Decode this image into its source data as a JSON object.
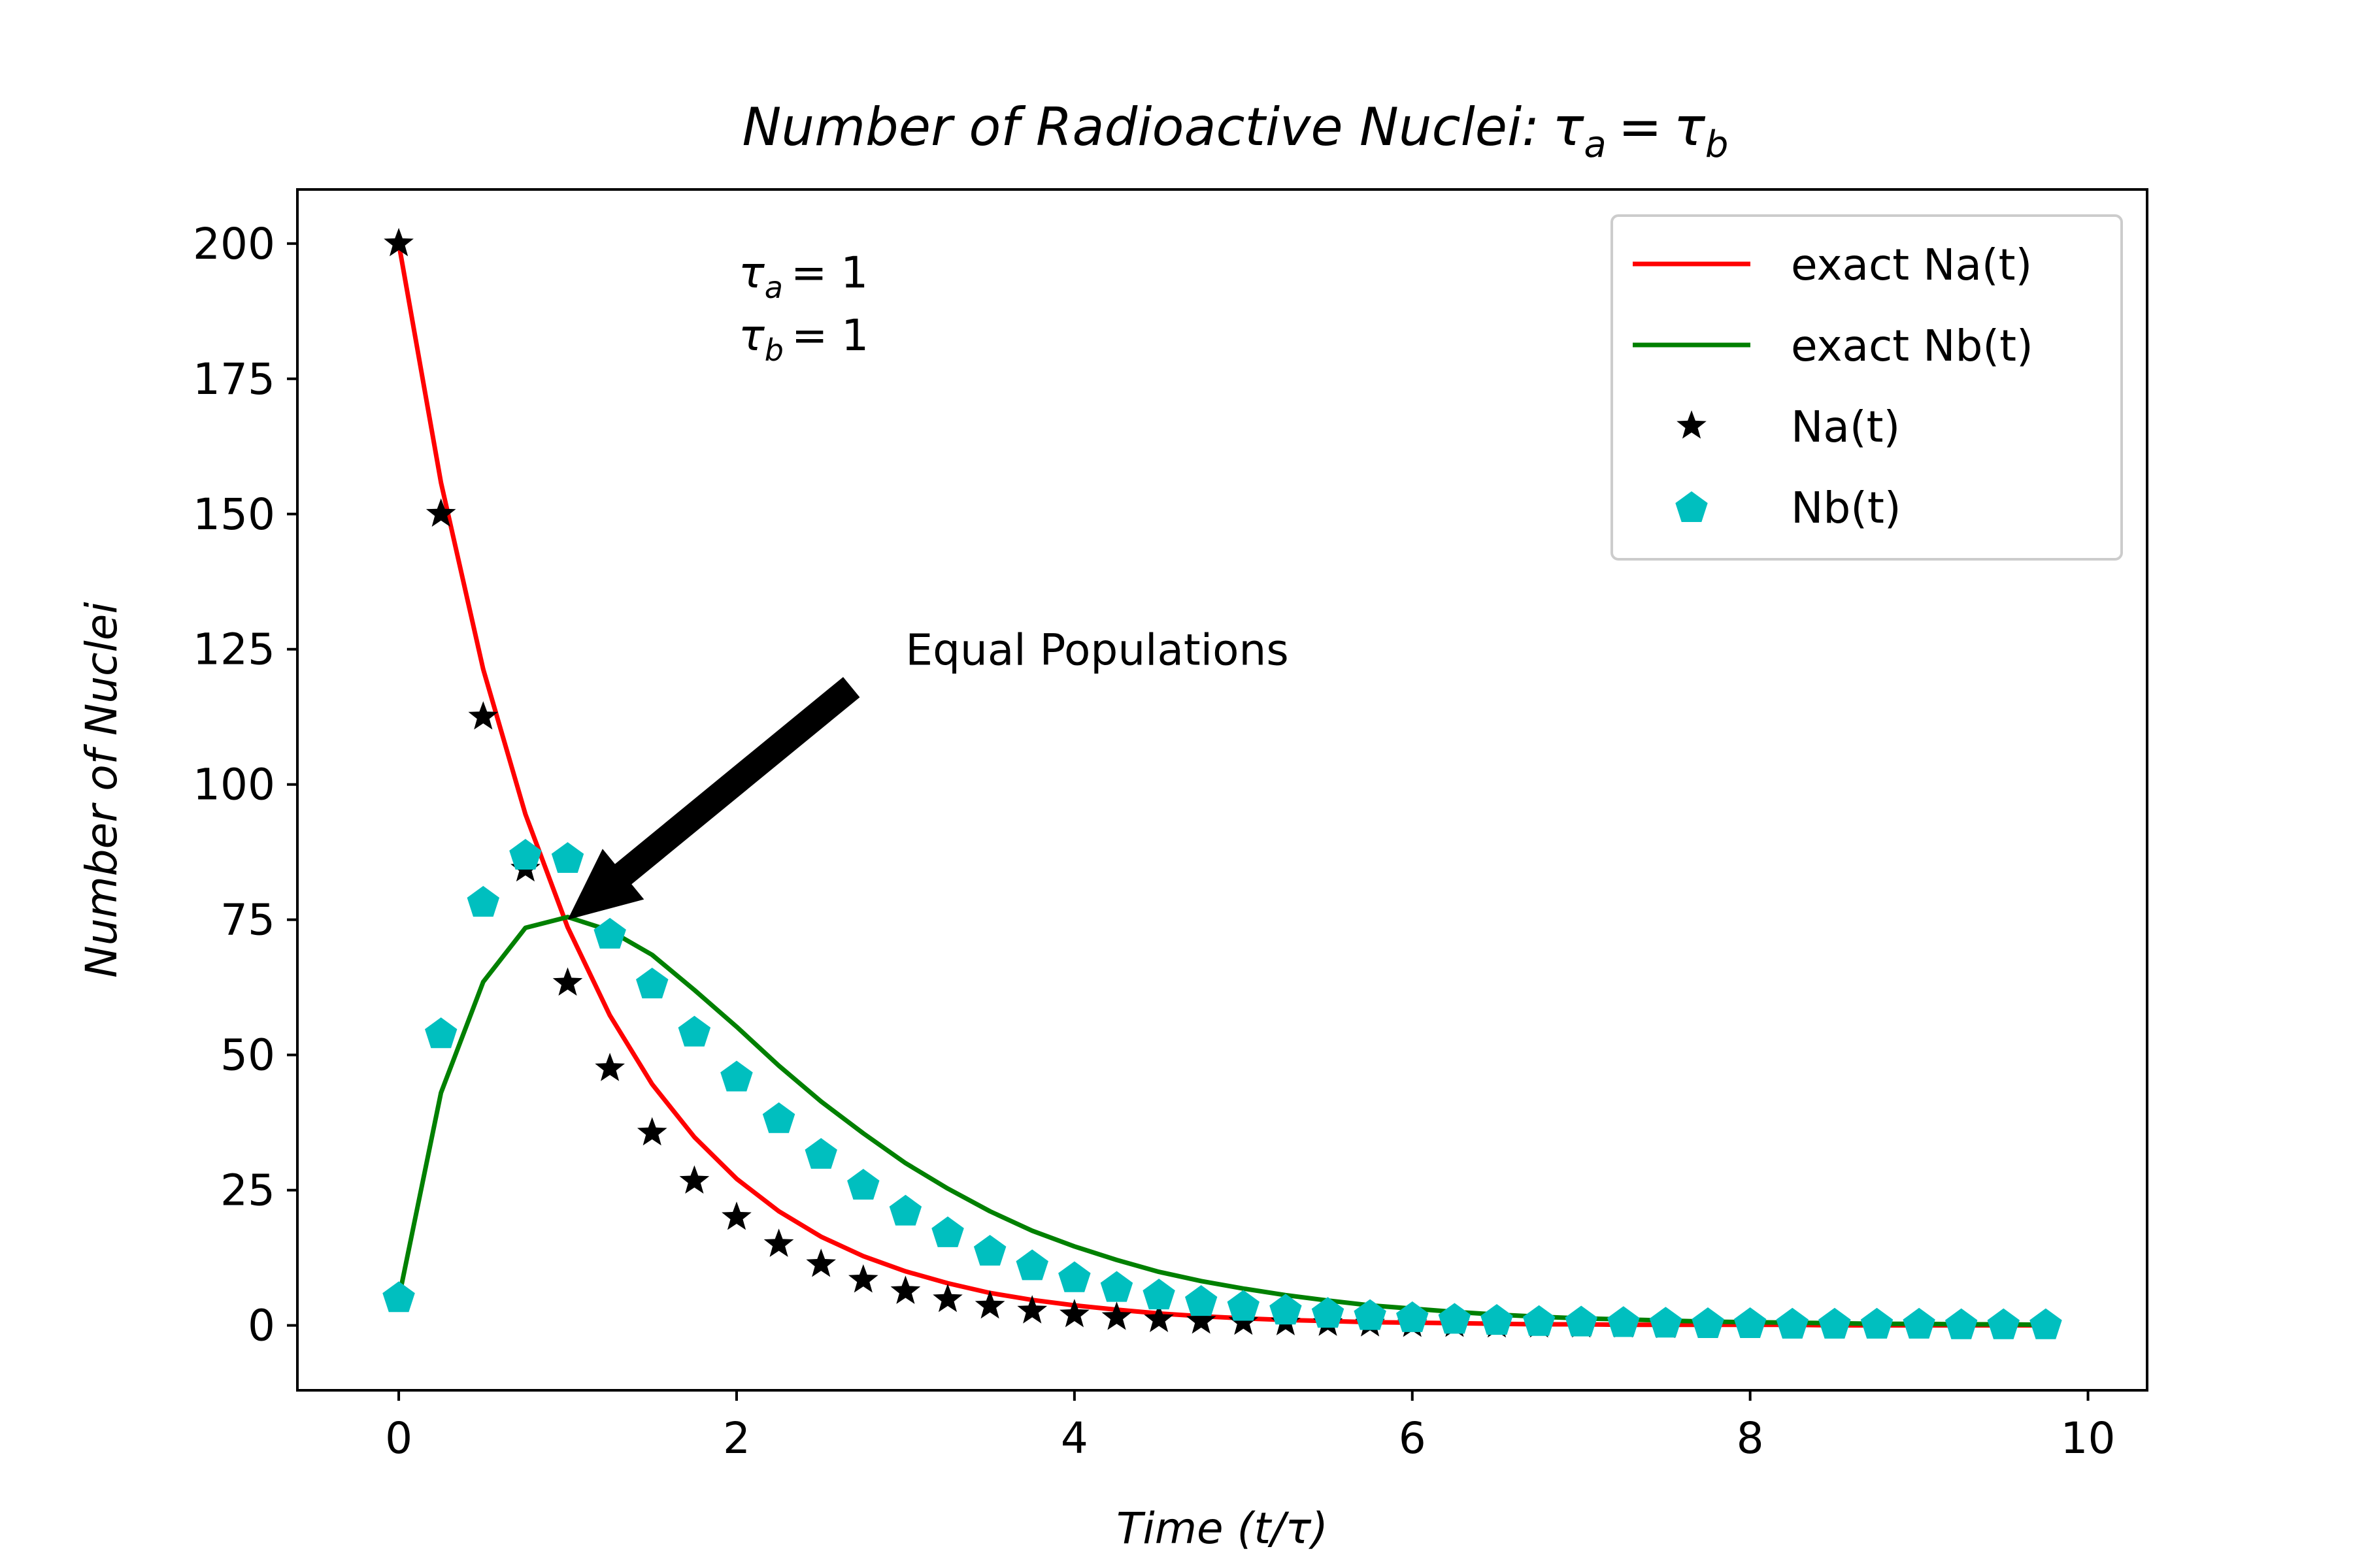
{
  "chart_data": {
    "type": "line",
    "title": "Number of Radioactive Nuclei:",
    "title_math": {
      "tau_a": "τ",
      "sub_a": "a",
      "eq": "=",
      "tau_b": "τ",
      "sub_b": "b"
    },
    "xlabel": "Time (t/τ)",
    "ylabel": "Number of Nuclei",
    "xlim": [
      -0.6,
      10.35
    ],
    "ylim": [
      -12,
      210
    ],
    "xticks": [
      0,
      2,
      4,
      6,
      8,
      10
    ],
    "yticks": [
      0,
      25,
      50,
      75,
      100,
      125,
      150,
      175,
      200
    ],
    "grid": false,
    "legend_position": "top-right",
    "annotations": {
      "params": [
        {
          "sym": "τ",
          "sub": "a",
          "rhs": "= 1"
        },
        {
          "sym": "τ",
          "sub": "b",
          "rhs": "= 1"
        }
      ],
      "arrow_text": "Equal Populations",
      "arrow_target": {
        "x": 1.0,
        "y": 75
      },
      "arrow_text_anchor": {
        "x": 3.0,
        "y": 125
      }
    },
    "x": [
      0,
      0.25,
      0.5,
      0.75,
      1.0,
      1.25,
      1.5,
      1.75,
      2.0,
      2.25,
      2.5,
      2.75,
      3.0,
      3.25,
      3.5,
      3.75,
      4.0,
      4.25,
      4.5,
      4.75,
      5.0,
      5.25,
      5.5,
      5.75,
      6.0,
      6.25,
      6.5,
      6.75,
      7.0,
      7.25,
      7.5,
      7.75,
      8.0,
      8.25,
      8.5,
      8.75,
      9.0,
      9.25,
      9.5,
      9.75
    ],
    "series": [
      {
        "name": "exact Na(t)",
        "kind": "line",
        "color": "#ff0000",
        "values": [
          200,
          155.8,
          121.3,
          94.5,
          73.6,
          57.3,
          44.6,
          34.8,
          27.1,
          21.1,
          16.4,
          12.8,
          10.0,
          7.8,
          6.0,
          4.7,
          3.7,
          2.9,
          2.2,
          1.7,
          1.3,
          1.0,
          0.8,
          0.6,
          0.5,
          0.4,
          0.3,
          0.2,
          0.2,
          0.1,
          0.1,
          0.1,
          0.1,
          0.1,
          0.0,
          0.0,
          0.0,
          0.0,
          0.0,
          0.0
        ]
      },
      {
        "name": "exact Nb(t)",
        "kind": "line",
        "color": "#008000",
        "values": [
          5,
          43,
          63.5,
          73.5,
          75.5,
          73,
          68.5,
          62,
          55.2,
          48,
          41.4,
          35.5,
          30,
          25.3,
          21.1,
          17.5,
          14.6,
          12.1,
          9.9,
          8.2,
          6.8,
          5.6,
          4.6,
          3.7,
          3.1,
          2.5,
          2.0,
          1.6,
          1.3,
          1.1,
          0.9,
          0.7,
          0.6,
          0.5,
          0.4,
          0.3,
          0.3,
          0.2,
          0.2,
          0.1
        ]
      },
      {
        "name": "Na(t)",
        "kind": "star",
        "color": "#000000",
        "values": [
          200,
          150,
          112.5,
          84.4,
          63.3,
          47.5,
          35.6,
          26.7,
          20.0,
          15.0,
          11.3,
          8.4,
          6.3,
          4.8,
          3.6,
          2.7,
          2.0,
          1.5,
          1.1,
          0.8,
          0.6,
          0.5,
          0.4,
          0.3,
          0.2,
          0.2,
          0.1,
          0.1,
          0.1,
          0.1,
          0.0,
          0.0,
          0.0,
          0.0,
          0.0,
          0.0,
          0.0,
          0.0,
          0.0,
          0.0
        ]
      },
      {
        "name": "Nb(t)",
        "kind": "pentagon",
        "color": "#00bfbf",
        "values": [
          5,
          53.8,
          78.1,
          86.8,
          86.2,
          72.2,
          63.0,
          54.1,
          45.8,
          38.1,
          31.5,
          25.8,
          21.0,
          17.0,
          13.6,
          10.9,
          8.7,
          6.9,
          5.5,
          4.3,
          3.4,
          2.7,
          2.1,
          1.7,
          1.3,
          1.0,
          0.8,
          0.6,
          0.5,
          0.4,
          0.3,
          0.2,
          0.2,
          0.1,
          0.1,
          0.1,
          0.1,
          0.0,
          0.0,
          0.0
        ]
      }
    ]
  }
}
